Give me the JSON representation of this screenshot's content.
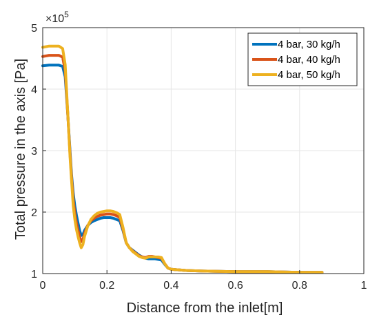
{
  "chart_data": {
    "type": "line",
    "title": "",
    "xlabel": "Distance from the inlet[m]",
    "ylabel": "Total pressure in the axis [Pa]",
    "y_exponent_label": "×10",
    "y_exponent_power": "5",
    "xlim": [
      0,
      1
    ],
    "ylim": [
      1,
      5
    ],
    "x_ticks": [
      0,
      0.2,
      0.4,
      0.6,
      0.8,
      1
    ],
    "x_tick_labels": [
      "0",
      "0.2",
      "0.4",
      "0.6",
      "0.8",
      "1"
    ],
    "y_ticks": [
      1,
      2,
      3,
      4,
      5
    ],
    "y_tick_labels": [
      "1",
      "2",
      "3",
      "4",
      "5"
    ],
    "y_unit_scale": "x 10^5 Pa",
    "grid": true,
    "legend_position": "top-right",
    "series": [
      {
        "name": "4 bar, 30 kg/h",
        "color": "#0072BD",
        "x": [
          0,
          0.02,
          0.05,
          0.062,
          0.07,
          0.078,
          0.085,
          0.09,
          0.095,
          0.1,
          0.105,
          0.11,
          0.115,
          0.12,
          0.125,
          0.13,
          0.14,
          0.15,
          0.16,
          0.17,
          0.18,
          0.19,
          0.2,
          0.21,
          0.22,
          0.23,
          0.24,
          0.25,
          0.26,
          0.27,
          0.28,
          0.29,
          0.3,
          0.31,
          0.32,
          0.33,
          0.34,
          0.35,
          0.36,
          0.37,
          0.38,
          0.39,
          0.4,
          0.45,
          0.5,
          0.6,
          0.7,
          0.8,
          0.87
        ],
        "y": [
          4.38,
          4.39,
          4.39,
          4.37,
          4.2,
          3.6,
          3.0,
          2.6,
          2.3,
          2.1,
          1.95,
          1.82,
          1.7,
          1.62,
          1.63,
          1.7,
          1.78,
          1.83,
          1.86,
          1.88,
          1.9,
          1.91,
          1.91,
          1.91,
          1.9,
          1.88,
          1.86,
          1.7,
          1.5,
          1.42,
          1.38,
          1.34,
          1.3,
          1.27,
          1.25,
          1.24,
          1.24,
          1.24,
          1.23,
          1.22,
          1.15,
          1.09,
          1.07,
          1.05,
          1.04,
          1.03,
          1.03,
          1.02,
          1.02
        ]
      },
      {
        "name": "4 bar, 40 kg/h",
        "color": "#D95319",
        "x": [
          0,
          0.02,
          0.05,
          0.062,
          0.07,
          0.078,
          0.085,
          0.09,
          0.095,
          0.1,
          0.105,
          0.11,
          0.115,
          0.12,
          0.125,
          0.13,
          0.14,
          0.15,
          0.16,
          0.17,
          0.18,
          0.19,
          0.2,
          0.21,
          0.22,
          0.23,
          0.24,
          0.25,
          0.26,
          0.27,
          0.28,
          0.29,
          0.3,
          0.31,
          0.32,
          0.33,
          0.34,
          0.35,
          0.36,
          0.37,
          0.38,
          0.39,
          0.4,
          0.45,
          0.5,
          0.6,
          0.7,
          0.8,
          0.87
        ],
        "y": [
          4.53,
          4.55,
          4.55,
          4.52,
          4.3,
          3.6,
          2.95,
          2.55,
          2.2,
          1.98,
          1.82,
          1.7,
          1.6,
          1.52,
          1.55,
          1.65,
          1.78,
          1.86,
          1.9,
          1.93,
          1.95,
          1.96,
          1.97,
          1.97,
          1.96,
          1.94,
          1.91,
          1.72,
          1.5,
          1.42,
          1.37,
          1.33,
          1.29,
          1.27,
          1.26,
          1.28,
          1.28,
          1.27,
          1.26,
          1.25,
          1.16,
          1.09,
          1.07,
          1.05,
          1.04,
          1.03,
          1.03,
          1.02,
          1.02
        ]
      },
      {
        "name": "4 bar, 50 kg/h",
        "color": "#EDB120",
        "x": [
          0,
          0.02,
          0.05,
          0.062,
          0.07,
          0.078,
          0.085,
          0.09,
          0.095,
          0.1,
          0.105,
          0.11,
          0.115,
          0.12,
          0.125,
          0.13,
          0.14,
          0.15,
          0.16,
          0.17,
          0.18,
          0.19,
          0.2,
          0.21,
          0.22,
          0.23,
          0.24,
          0.25,
          0.26,
          0.27,
          0.28,
          0.29,
          0.3,
          0.31,
          0.32,
          0.33,
          0.34,
          0.35,
          0.36,
          0.37,
          0.38,
          0.39,
          0.4,
          0.45,
          0.5,
          0.6,
          0.7,
          0.8,
          0.87
        ],
        "y": [
          4.68,
          4.7,
          4.7,
          4.66,
          4.4,
          3.62,
          2.9,
          2.5,
          2.1,
          1.88,
          1.72,
          1.6,
          1.5,
          1.42,
          1.47,
          1.6,
          1.77,
          1.88,
          1.94,
          1.98,
          2.0,
          2.01,
          2.02,
          2.02,
          2.01,
          1.99,
          1.96,
          1.75,
          1.5,
          1.42,
          1.36,
          1.32,
          1.28,
          1.26,
          1.25,
          1.27,
          1.27,
          1.27,
          1.27,
          1.26,
          1.16,
          1.09,
          1.07,
          1.05,
          1.04,
          1.03,
          1.03,
          1.02,
          1.02
        ]
      }
    ]
  }
}
